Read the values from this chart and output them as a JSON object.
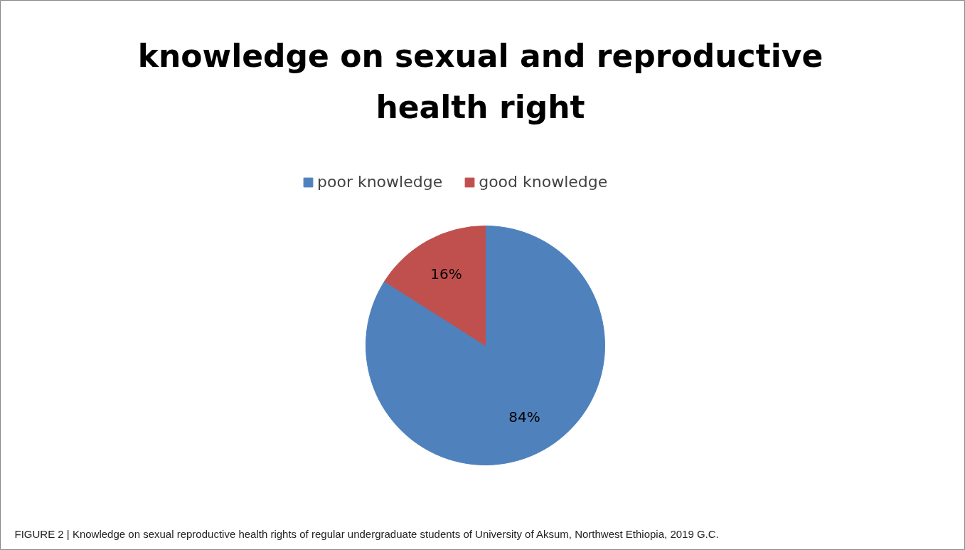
{
  "chart_data": {
    "type": "pie",
    "title": "knowledge on sexual and reproductive health right",
    "categories": [
      "poor knowledge",
      "good knowledge"
    ],
    "values": [
      84,
      16
    ],
    "colors": [
      "#4f81bd",
      "#c0504d"
    ],
    "value_labels": [
      "84%",
      "16%"
    ],
    "legend": "top",
    "annotations": [
      "FIGURE 2 | Knowledge on sexual reproductive health rights of regular undergraduate students of University of Aksum, Northwest Ethiopia, 2019 G.C."
    ]
  }
}
